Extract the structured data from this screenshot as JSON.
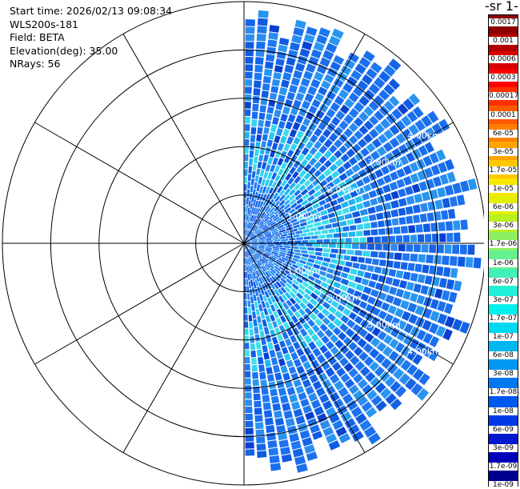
{
  "info": {
    "start_time": "Start time: 2026/02/13 09:08:34",
    "instrument": "WLS200s-181",
    "field": "Field: BETA",
    "elevation": "Elevation(deg): 35.00",
    "nrays": "NRays: 56"
  },
  "chart_data": {
    "type": "heatmap",
    "projection": "polar-ppi",
    "ranges_km": [
      1,
      2,
      3,
      4,
      5
    ],
    "range_labels": [
      "1.00km",
      "2.00km",
      "3.00km",
      "4.00km",
      "5.00km"
    ],
    "max_range_km": 5,
    "sector_azimuth_deg": [
      0,
      180
    ],
    "rays": 56,
    "radial_spokes_deg": [
      0,
      30,
      60,
      90,
      120,
      150,
      180,
      210,
      240,
      270,
      300,
      330
    ],
    "colorbar_title": "-1 sr-",
    "colorbar_ticks": [
      "0.0017",
      "0.001",
      "0.0006",
      "0.0003",
      "0.00017",
      "0.0001",
      "6e-05",
      "3e-05",
      "1.7e-05",
      "1e-05",
      "6e-06",
      "3e-06",
      "1.7e-06",
      "1e-06",
      "6e-07",
      "3e-07",
      "1.7e-07",
      "1e-07",
      "6e-08",
      "3e-08",
      "1.7e-08",
      "1e-08",
      "6e-09",
      "3e-09",
      "1.7e-09",
      "1e-09"
    ],
    "colorbar_colors": [
      "#8b0000",
      "#b00000",
      "#d80000",
      "#ff0000",
      "#ff3000",
      "#ff5a00",
      "#ff8000",
      "#ffa400",
      "#ffc800",
      "#f8e800",
      "#e0f000",
      "#b8f020",
      "#8cf060",
      "#66f090",
      "#40f0b8",
      "#20f0d8",
      "#00f0f0",
      "#00d8f0",
      "#00b8f0",
      "#0098f0",
      "#0078f0",
      "#0058f0",
      "#0038e8",
      "#0018d0",
      "#0000b8",
      "#000090"
    ]
  }
}
